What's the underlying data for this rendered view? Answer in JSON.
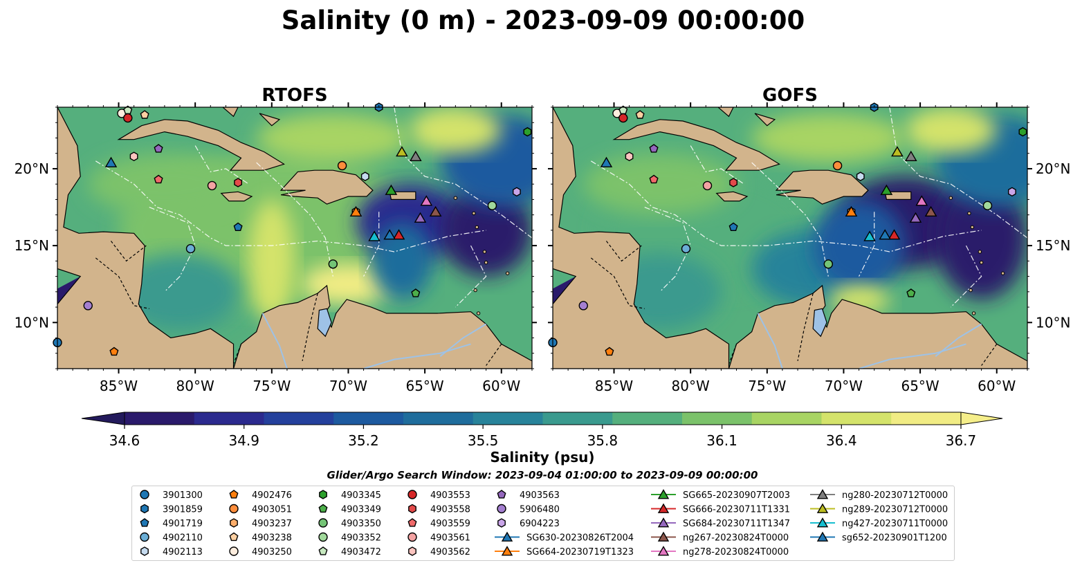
{
  "figure": {
    "title": "Salinity (0 m) - 2023-09-09 00:00:00",
    "panels": [
      {
        "title": "RTOFS",
        "key": "rtofs"
      },
      {
        "title": "GOFS",
        "key": "gofs"
      }
    ],
    "colorbar": {
      "label": "Salinity (psu)",
      "ticks": [
        "34.6",
        "34.9",
        "35.2",
        "35.5",
        "35.8",
        "36.1",
        "36.4",
        "36.7"
      ],
      "colors": [
        "#2a1a6b",
        "#2b2a8e",
        "#24409c",
        "#1d5a9f",
        "#1f6d9c",
        "#28839a",
        "#3a9a8e",
        "#55af7d",
        "#7bc26a",
        "#a8d463",
        "#d4e36b",
        "#f1ec84"
      ]
    },
    "search_window": "Glider/Argo Search Window: 2023-09-04 01:00:00 to 2023-09-09 00:00:00",
    "land_color": "#d2b48c"
  },
  "chart_data": {
    "type": "map",
    "variable": "Salinity (0 m)",
    "units": "psu",
    "time": "2023-09-09 00:00:00",
    "lon_ticks": [
      "85°W",
      "80°W",
      "75°W",
      "70°W",
      "65°W",
      "60°W"
    ],
    "lat_ticks": [
      "20°N",
      "15°N",
      "10°N"
    ],
    "lon_range": [
      -89,
      -58
    ],
    "lat_range": [
      7,
      24
    ],
    "color_range": [
      34.6,
      36.7
    ],
    "observations": [
      {
        "id": "3901300",
        "marker": "circle",
        "color": "#1f77b4",
        "lon": -89.0,
        "lat": 8.7
      },
      {
        "id": "3901859",
        "marker": "hexagon",
        "color": "#1f77b4",
        "lon": -68.0,
        "lat": 24.0
      },
      {
        "id": "4901719",
        "marker": "pentagon",
        "color": "#1f77b4",
        "lon": -77.2,
        "lat": 16.2
      },
      {
        "id": "4902110",
        "marker": "circle",
        "color": "#6baed6",
        "lon": -80.3,
        "lat": 14.8
      },
      {
        "id": "4902113",
        "marker": "hexagon",
        "color": "#c6dbef",
        "lon": -68.9,
        "lat": 19.5
      },
      {
        "id": "4902476",
        "marker": "pentagon",
        "color": "#ff7f0e",
        "lon": -85.3,
        "lat": 8.1
      },
      {
        "id": "4903051",
        "marker": "circle",
        "color": "#fd8d3c",
        "lon": -70.4,
        "lat": 20.2
      },
      {
        "id": "4903237",
        "marker": "hexagon",
        "color": "#fdae6b",
        "lon": -69.5,
        "lat": 17.2
      },
      {
        "id": "4903238",
        "marker": "pentagon",
        "color": "#fdd0a2",
        "lon": -83.3,
        "lat": 23.5
      },
      {
        "id": "4903250",
        "marker": "circle",
        "color": "#feedde",
        "lon": -84.8,
        "lat": 23.6
      },
      {
        "id": "4903345",
        "marker": "hexagon",
        "color": "#2ca02c",
        "lon": -58.3,
        "lat": 22.4
      },
      {
        "id": "4903349",
        "marker": "pentagon",
        "color": "#4daf4a",
        "lon": -65.6,
        "lat": 11.9
      },
      {
        "id": "4903350",
        "marker": "circle",
        "color": "#74c476",
        "lon": -71.0,
        "lat": 13.8
      },
      {
        "id": "4903352",
        "marker": "circle",
        "color": "#a1d99b",
        "lon": -60.6,
        "lat": 17.6
      },
      {
        "id": "4903472",
        "marker": "pentagon",
        "color": "#c7e9c0",
        "lon": -84.4,
        "lat": 23.8
      },
      {
        "id": "4903553",
        "marker": "circle",
        "color": "#d62728",
        "lon": -84.4,
        "lat": 23.3
      },
      {
        "id": "4903558",
        "marker": "hexagon",
        "color": "#e34a4a",
        "lon": -77.2,
        "lat": 19.1
      },
      {
        "id": "4903559",
        "marker": "pentagon",
        "color": "#f06a6a",
        "lon": -82.4,
        "lat": 19.3
      },
      {
        "id": "4903561",
        "marker": "circle",
        "color": "#f4a3a3",
        "lon": -78.9,
        "lat": 18.9
      },
      {
        "id": "4903562",
        "marker": "hexagon",
        "color": "#fcc5c0",
        "lon": -84.0,
        "lat": 20.8
      },
      {
        "id": "4903563",
        "marker": "pentagon",
        "color": "#9467bd",
        "lon": -82.4,
        "lat": 21.3
      },
      {
        "id": "5906480",
        "marker": "circle",
        "color": "#a47fd0",
        "lon": -87.0,
        "lat": 11.1
      },
      {
        "id": "6904223",
        "marker": "hexagon",
        "color": "#c9a5e8",
        "lon": -59.0,
        "lat": 18.5
      },
      {
        "id": "SG630-20230826T2004",
        "marker": "triangle",
        "color": "#1f77b4",
        "lon": -85.5,
        "lat": 20.4
      },
      {
        "id": "SG664-20230719T1323",
        "marker": "triangle",
        "color": "#ff7f0e",
        "lon": -69.5,
        "lat": 17.2
      },
      {
        "id": "SG665-20230907T2003",
        "marker": "triangle",
        "color": "#2ca02c",
        "lon": -67.2,
        "lat": 18.6
      },
      {
        "id": "SG666-20230711T1331",
        "marker": "triangle",
        "color": "#d62728",
        "lon": -66.7,
        "lat": 15.7
      },
      {
        "id": "SG684-20230711T1347",
        "marker": "triangle",
        "color": "#9467bd",
        "lon": -65.3,
        "lat": 16.8
      },
      {
        "id": "ng267-20230824T0000",
        "marker": "triangle",
        "color": "#8c564b",
        "lon": -64.3,
        "lat": 17.2
      },
      {
        "id": "ng278-20230824T0000",
        "marker": "triangle",
        "color": "#e377c2",
        "lon": -64.9,
        "lat": 17.9
      },
      {
        "id": "ng280-20230712T0000",
        "marker": "triangle",
        "color": "#7f7f7f",
        "lon": -65.6,
        "lat": 20.8
      },
      {
        "id": "ng289-20230712T0000",
        "marker": "triangle",
        "color": "#bcbd22",
        "lon": -66.5,
        "lat": 21.1
      },
      {
        "id": "ng427-20230711T0000",
        "marker": "triangle",
        "color": "#17becf",
        "lon": -68.3,
        "lat": 15.6
      },
      {
        "id": "sg652-20230901T1200",
        "marker": "triangle",
        "color": "#1f77b4",
        "lon": -67.3,
        "lat": 15.7
      }
    ],
    "legend_columns": [
      [
        "3901300",
        "3901859",
        "4901719",
        "4902110",
        "4902113"
      ],
      [
        "4902476",
        "4903051",
        "4903237",
        "4903238",
        "4903250"
      ],
      [
        "4903345",
        "4903349",
        "4903350",
        "4903352",
        "4903472"
      ],
      [
        "4903553",
        "4903558",
        "4903559",
        "4903561",
        "4903562"
      ],
      [
        "4903563",
        "5906480",
        "6904223",
        "SG630-20230826T2004",
        "SG664-20230719T1323"
      ],
      [
        "SG665-20230907T2003",
        "SG666-20230711T1331",
        "SG684-20230711T1347",
        "ng267-20230824T0000",
        "ng278-20230824T0000"
      ],
      [
        "ng280-20230712T0000",
        "ng289-20230712T0000",
        "ng427-20230711T0000",
        "sg652-20230901T1200"
      ]
    ]
  }
}
